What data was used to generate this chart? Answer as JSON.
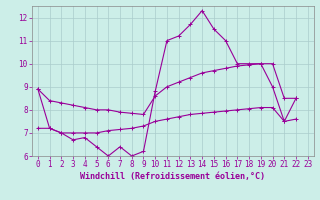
{
  "xlabel": "Windchill (Refroidissement éolien,°C)",
  "background_color": "#cceee8",
  "grid_color": "#aacccc",
  "line_color": "#990099",
  "xlim": [
    -0.5,
    23.5
  ],
  "ylim": [
    6,
    12.5
  ],
  "yticks": [
    6,
    7,
    8,
    9,
    10,
    11,
    12
  ],
  "xticks": [
    0,
    1,
    2,
    3,
    4,
    5,
    6,
    7,
    8,
    9,
    10,
    11,
    12,
    13,
    14,
    15,
    16,
    17,
    18,
    19,
    20,
    21,
    22,
    23
  ],
  "main_y": [
    8.9,
    7.2,
    7.0,
    6.7,
    6.8,
    6.4,
    6.0,
    6.4,
    6.0,
    6.2,
    8.8,
    11.0,
    11.2,
    11.7,
    12.3,
    11.5,
    11.0,
    10.0,
    10.0,
    10.0,
    9.0,
    7.5,
    8.5,
    null
  ],
  "upper_y": [
    8.9,
    8.4,
    8.3,
    8.2,
    8.1,
    8.0,
    8.0,
    7.9,
    7.85,
    7.8,
    8.6,
    9.0,
    9.2,
    9.4,
    9.6,
    9.7,
    9.8,
    9.9,
    9.95,
    10.0,
    10.0,
    8.5,
    8.5,
    null
  ],
  "lower_y": [
    7.2,
    7.2,
    7.0,
    7.0,
    7.0,
    7.0,
    7.1,
    7.15,
    7.2,
    7.3,
    7.5,
    7.6,
    7.7,
    7.8,
    7.85,
    7.9,
    7.95,
    8.0,
    8.05,
    8.1,
    8.1,
    7.5,
    7.6,
    null
  ],
  "marker": "+",
  "markersize": 3,
  "linewidth": 0.8,
  "tick_fontsize": 5.5,
  "xlabel_fontsize": 6.0
}
